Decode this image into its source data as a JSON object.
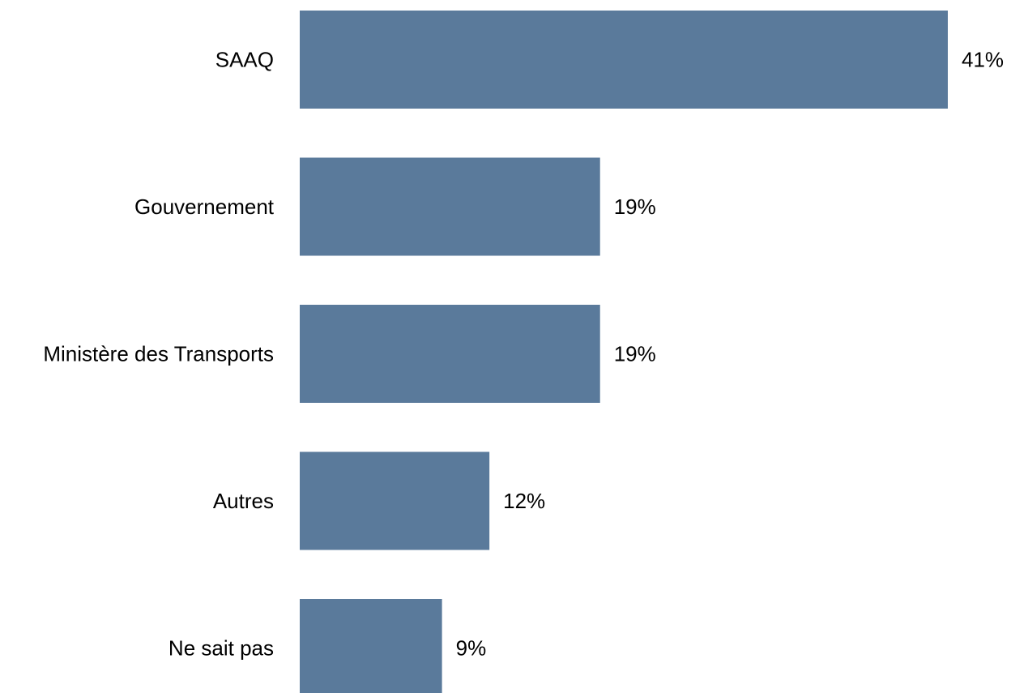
{
  "chart_data": {
    "type": "bar",
    "orientation": "horizontal",
    "categories": [
      "SAAQ",
      "Gouvernement",
      "Ministère des Transports",
      "Autres",
      "Ne sait pas"
    ],
    "values": [
      41,
      19,
      19,
      12,
      9
    ],
    "value_labels": [
      "41%",
      "19%",
      "19%",
      "12%",
      "9%"
    ],
    "unit": "%",
    "title": "",
    "xlabel": "",
    "ylabel": "",
    "grid": false,
    "legend": "none",
    "bar_color": "#5a7a9b"
  }
}
